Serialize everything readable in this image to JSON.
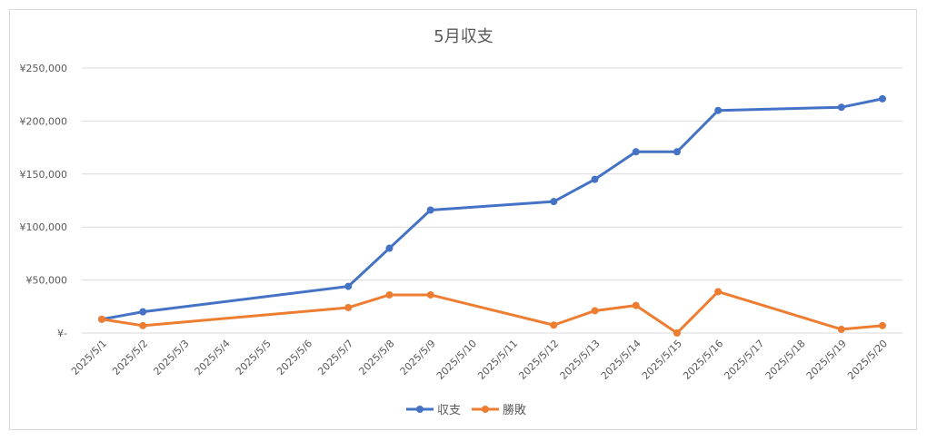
{
  "chart_data": {
    "type": "line",
    "title": "5月収支",
    "categories": [
      "2025/5/1",
      "2025/5/2",
      "2025/5/3",
      "2025/5/4",
      "2025/5/5",
      "2025/5/6",
      "2025/5/7",
      "2025/5/8",
      "2025/5/9",
      "2025/5/10",
      "2025/5/11",
      "2025/5/12",
      "2025/5/13",
      "2025/5/14",
      "2025/5/15",
      "2025/5/16",
      "2025/5/17",
      "2025/5/18",
      "2025/5/19",
      "2025/5/20"
    ],
    "y_ticks": [
      "¥-",
      "¥50,000",
      "¥100,000",
      "¥150,000",
      "¥200,000",
      "¥250,000"
    ],
    "ylim": [
      0,
      250000
    ],
    "grid": true,
    "legend_position": "bottom",
    "series": [
      {
        "name": "収支",
        "color": "#4472C4",
        "values": [
          13000,
          20000,
          null,
          null,
          null,
          null,
          44000,
          80000,
          116000,
          null,
          null,
          124000,
          145000,
          171000,
          171000,
          210000,
          null,
          null,
          213000,
          221000
        ]
      },
      {
        "name": "勝敗",
        "color": "#ED7D31",
        "values": [
          13000,
          7000,
          null,
          null,
          null,
          null,
          24000,
          36000,
          36000,
          null,
          null,
          7500,
          21000,
          26000,
          0,
          39000,
          null,
          null,
          3500,
          7000
        ]
      }
    ]
  }
}
